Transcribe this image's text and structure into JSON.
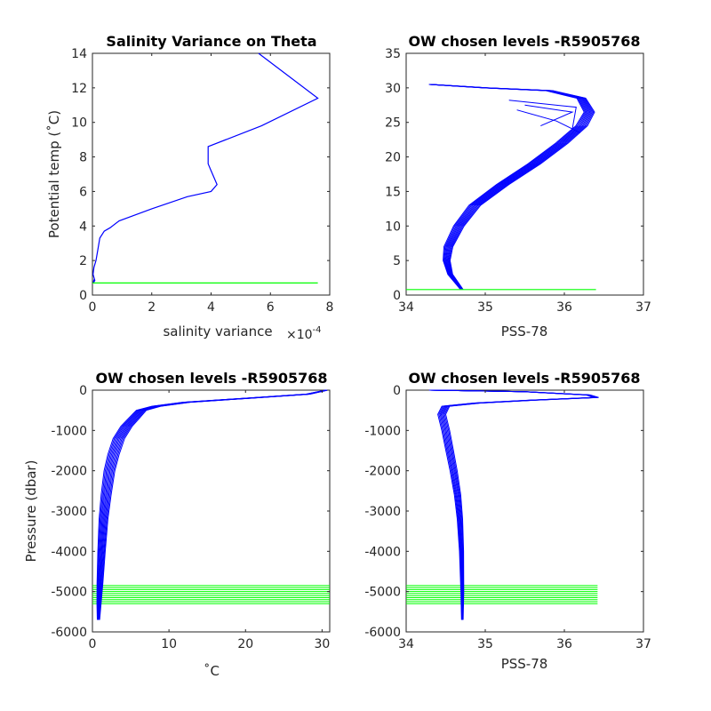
{
  "chart_data": [
    {
      "type": "line",
      "title": "Salinity Variance on Theta",
      "xlabel": "salinity variance",
      "x_exponent_label": "×10",
      "x_exponent_power": "-4",
      "ylabel": "Potential temp (˚C)",
      "xlim": [
        0,
        8
      ],
      "ylim": [
        0,
        14
      ],
      "xticks": [
        0,
        2,
        4,
        6,
        8
      ],
      "yticks": [
        0,
        2,
        4,
        6,
        8,
        10,
        12,
        14
      ],
      "series": [
        {
          "color": "#0000ff",
          "points": [
            [
              5.6,
              14.0
            ],
            [
              7.6,
              11.4
            ],
            [
              5.7,
              9.8
            ],
            [
              3.9,
              8.6
            ],
            [
              3.9,
              7.6
            ],
            [
              4.0,
              7.2
            ],
            [
              4.2,
              6.4
            ],
            [
              4.0,
              6.0
            ],
            [
              3.2,
              5.7
            ],
            [
              2.0,
              5.0
            ],
            [
              0.9,
              4.3
            ],
            [
              0.6,
              3.9
            ],
            [
              0.4,
              3.7
            ],
            [
              0.25,
              3.3
            ],
            [
              0.18,
              2.6
            ],
            [
              0.12,
              2.0
            ],
            [
              0.05,
              1.6
            ],
            [
              0.02,
              1.2
            ],
            [
              0.08,
              0.85
            ],
            [
              0.03,
              0.7
            ],
            [
              0.05,
              0.9
            ]
          ]
        },
        {
          "color": "#00ff00",
          "points": [
            [
              0,
              0.7
            ],
            [
              7.6,
              0.7
            ]
          ]
        }
      ]
    },
    {
      "type": "line",
      "title": "OW chosen levels -R5905768",
      "xlabel": "PSS-78",
      "ylabel": "",
      "xlim": [
        34,
        37
      ],
      "ylim": [
        0,
        35
      ],
      "xticks": [
        34,
        35,
        36,
        37
      ],
      "yticks": [
        0,
        5,
        10,
        15,
        20,
        25,
        30,
        35
      ],
      "series": [
        {
          "color": "#0000ff",
          "points": [
            [
              34.7,
              0.8
            ],
            [
              34.55,
              3
            ],
            [
              34.5,
              5
            ],
            [
              34.52,
              7
            ],
            [
              34.65,
              10
            ],
            [
              34.85,
              13
            ],
            [
              35.2,
              16
            ],
            [
              35.6,
              19
            ],
            [
              35.95,
              22
            ],
            [
              36.2,
              24.5
            ],
            [
              36.3,
              26.5
            ],
            [
              36.2,
              28.5
            ],
            [
              35.8,
              29.6
            ],
            [
              35.0,
              30.0
            ],
            [
              34.3,
              30.5
            ]
          ]
        },
        {
          "color": "#00ff00",
          "points": [
            [
              34.0,
              0.8
            ],
            [
              36.4,
              0.8
            ]
          ]
        }
      ],
      "band_offsets_x": [
        -0.06,
        0.1
      ],
      "band_count": 10
    },
    {
      "type": "line",
      "title": "OW chosen levels -R5905768",
      "xlabel": "˚C",
      "ylabel": "Pressure (dbar)",
      "xlim": [
        0,
        31
      ],
      "ylim": [
        -6000,
        0
      ],
      "xticks": [
        0,
        10,
        20,
        30
      ],
      "yticks": [
        -6000,
        -5000,
        -4000,
        -3000,
        -2000,
        -1000,
        0
      ],
      "series": [
        {
          "color": "#0000ff",
          "points": [
            [
              30.5,
              0
            ],
            [
              28,
              -100
            ],
            [
              20,
              -200
            ],
            [
              12,
              -300
            ],
            [
              8,
              -400
            ],
            [
              6,
              -500
            ],
            [
              5,
              -700
            ],
            [
              4,
              -900
            ],
            [
              3,
              -1200
            ],
            [
              2.3,
              -1600
            ],
            [
              1.8,
              -2000
            ],
            [
              1.4,
              -2600
            ],
            [
              1.1,
              -3200
            ],
            [
              0.9,
              -4000
            ],
            [
              0.75,
              -4800
            ],
            [
              0.7,
              -5300
            ],
            [
              0.7,
              -5700
            ]
          ]
        }
      ],
      "green_levels": [
        -4850,
        -4900,
        -4950,
        -5000,
        -5050,
        -5100,
        -5150,
        -5200,
        -5250,
        -5300
      ],
      "green_x": [
        0,
        31
      ],
      "band_offsets_x": [
        -0.3,
        1.2
      ],
      "band_count": 10
    },
    {
      "type": "line",
      "title": "OW chosen levels -R5905768",
      "xlabel": "PSS-78",
      "ylabel": "",
      "xlim": [
        34,
        37
      ],
      "ylim": [
        -6000,
        0
      ],
      "xticks": [
        34,
        35,
        36,
        37
      ],
      "yticks": [
        -6000,
        -5000,
        -4000,
        -3000,
        -2000,
        -1000,
        0
      ],
      "series": [
        {
          "color": "#0000ff",
          "points": [
            [
              34.3,
              0
            ],
            [
              35.5,
              -40
            ],
            [
              36.3,
              -120
            ],
            [
              36.4,
              -180
            ],
            [
              35.6,
              -250
            ],
            [
              34.9,
              -320
            ],
            [
              34.5,
              -400
            ],
            [
              34.45,
              -600
            ],
            [
              34.5,
              -1000
            ],
            [
              34.55,
              -1500
            ],
            [
              34.6,
              -2000
            ],
            [
              34.65,
              -2600
            ],
            [
              34.68,
              -3200
            ],
            [
              34.7,
              -4000
            ],
            [
              34.71,
              -5000
            ],
            [
              34.71,
              -5700
            ]
          ]
        }
      ],
      "green_levels": [
        -4850,
        -4900,
        -4950,
        -5000,
        -5050,
        -5100,
        -5150,
        -5200,
        -5250,
        -5300
      ],
      "green_x": [
        34,
        36.42
      ],
      "band_offsets_x": [
        -0.05,
        0.05
      ],
      "band_count": 8
    }
  ]
}
